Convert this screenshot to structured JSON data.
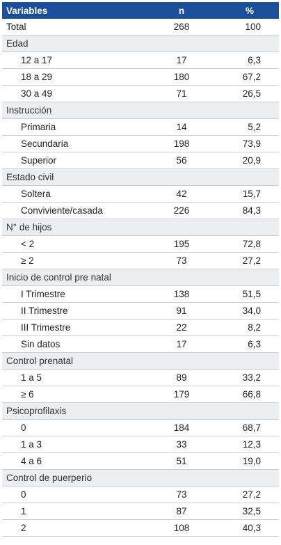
{
  "table": {
    "headers": [
      "Variables",
      "n",
      "%"
    ],
    "rows": [
      {
        "type": "total",
        "label": "Total",
        "n": "268",
        "pct": "100"
      },
      {
        "type": "group",
        "label": "Edad"
      },
      {
        "type": "sub",
        "label": "12 a 17",
        "n": "17",
        "pct": "6,3"
      },
      {
        "type": "sub",
        "label": "18 a 29",
        "n": "180",
        "pct": "67,2"
      },
      {
        "type": "sub",
        "label": "30 a 49",
        "n": "71",
        "pct": "26,5"
      },
      {
        "type": "group",
        "label": "Instrucción"
      },
      {
        "type": "sub",
        "label": "Primaria",
        "n": "14",
        "pct": "5,2"
      },
      {
        "type": "sub",
        "label": "Secundaria",
        "n": "198",
        "pct": "73,9"
      },
      {
        "type": "sub",
        "label": "Superior",
        "n": "56",
        "pct": "20,9"
      },
      {
        "type": "group",
        "label": "Estado civil"
      },
      {
        "type": "sub",
        "label": "Soltera",
        "n": "42",
        "pct": "15,7"
      },
      {
        "type": "sub",
        "label": "Conviviente/casada",
        "n": "226",
        "pct": "84,3"
      },
      {
        "type": "group",
        "label": "N° de hijos"
      },
      {
        "type": "sub",
        "label": "< 2",
        "n": "195",
        "pct": "72,8"
      },
      {
        "type": "sub",
        "label": "≥ 2",
        "n": "73",
        "pct": "27,2"
      },
      {
        "type": "group",
        "label": "Inicio de control pre natal"
      },
      {
        "type": "sub",
        "label": "I Trimestre",
        "n": "138",
        "pct": "51,5"
      },
      {
        "type": "sub",
        "label": "II Trimestre",
        "n": "91",
        "pct": "34,0"
      },
      {
        "type": "sub",
        "label": "III Trimestre",
        "n": "22",
        "pct": "8,2"
      },
      {
        "type": "sub",
        "label": "Sin datos",
        "n": "17",
        "pct": "6,3"
      },
      {
        "type": "group",
        "label": "Control prenatal"
      },
      {
        "type": "sub",
        "label": "1 a 5",
        "n": "89",
        "pct": "33,2"
      },
      {
        "type": "sub",
        "label": "≥ 6",
        "n": "179",
        "pct": "66,8"
      },
      {
        "type": "group",
        "label": "Psicoprofilaxis"
      },
      {
        "type": "sub",
        "label": "0",
        "n": "184",
        "pct": "68,7"
      },
      {
        "type": "sub",
        "label": "1 a 3",
        "n": "33",
        "pct": "12,3"
      },
      {
        "type": "sub",
        "label": "4 a 6",
        "n": "51",
        "pct": "19,0"
      },
      {
        "type": "group",
        "label": "Control de puerperio"
      },
      {
        "type": "sub",
        "label": "0",
        "n": "73",
        "pct": "27,2"
      },
      {
        "type": "sub",
        "label": "1",
        "n": "87",
        "pct": "32,5"
      },
      {
        "type": "sub",
        "label": "2",
        "n": "108",
        "pct": "40,3"
      }
    ]
  },
  "colors": {
    "header_bg": "#1b4f9c",
    "header_text": "#ffffff",
    "group_bg": "#eceef2",
    "row_border": "#c7ccd6"
  }
}
